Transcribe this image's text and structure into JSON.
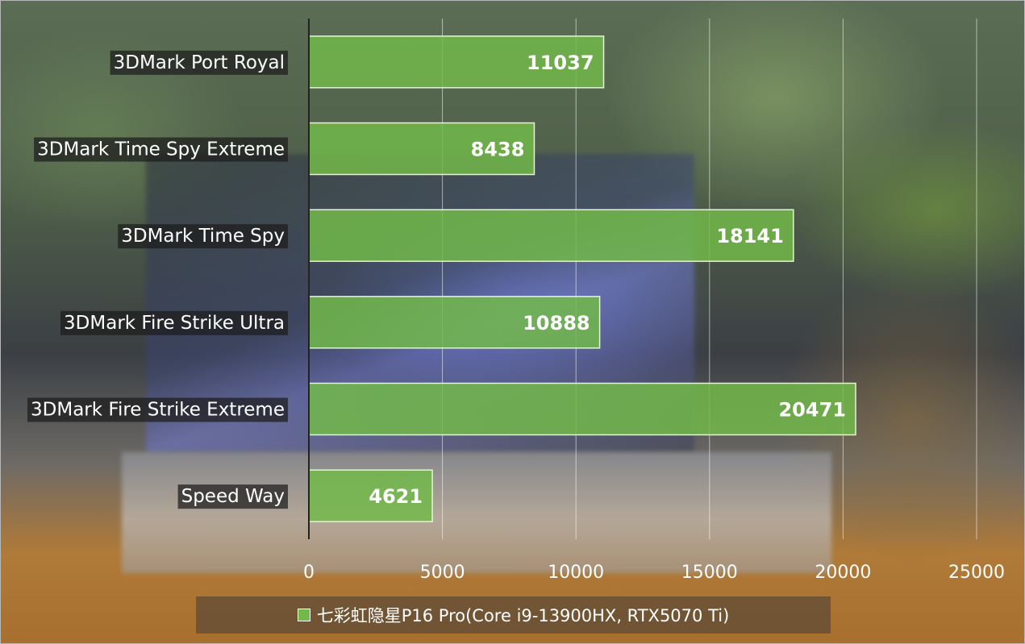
{
  "chart_data": {
    "type": "bar",
    "orientation": "horizontal",
    "categories": [
      "3DMark Port Royal",
      "3DMark Time Spy Extreme",
      "3DMark Time Spy",
      "3DMark Fire Strike Ultra",
      "3DMark Fire Strike Extreme",
      "Speed Way"
    ],
    "series": [
      {
        "name": "七彩虹隐星P16 Pro(Core i9-13900HX, RTX5070 Ti)",
        "values": [
          11037,
          8438,
          18141,
          10888,
          20471,
          4621
        ],
        "color": "#72b84a"
      }
    ],
    "xlim": [
      0,
      25000
    ],
    "xticks": [
      "0",
      "5000",
      "10000",
      "15000",
      "20000",
      "25000"
    ],
    "grid": true,
    "legend": "bottom",
    "title": "",
    "xlabel": "",
    "ylabel": ""
  }
}
